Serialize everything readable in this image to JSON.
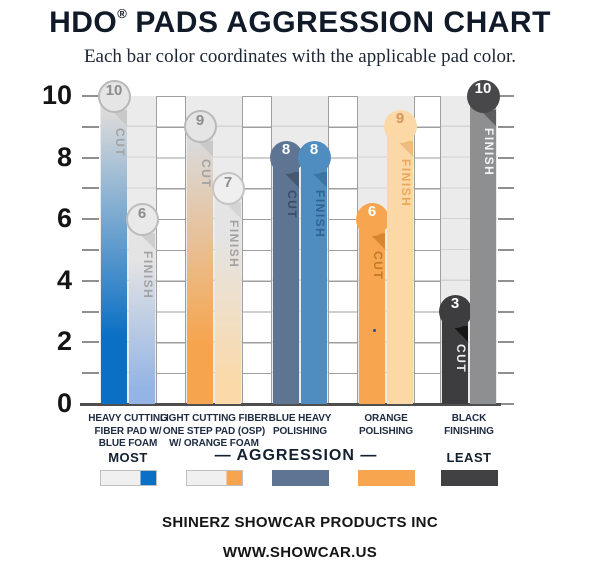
{
  "title": "HDO® PADS AGGRESSION CHART",
  "title_parts": {
    "brand": "HDO",
    "reg": "®",
    "rest": "PADS AGGRESSION CHART"
  },
  "subtitle": "Each bar color coordinates with the applicable pad color.",
  "legend": {
    "most": "MOST",
    "aggression": "— AGGRESSION —",
    "least": "LEAST"
  },
  "footer": {
    "company": "SHINERZ SHOWCAR PRODUCTS INC",
    "website": "WWW.SHOWCAR.US"
  },
  "chart_data": {
    "type": "bar",
    "title": "HDO® PADS AGGRESSION CHART",
    "ylim": [
      0,
      10
    ],
    "ytick_labels": [
      "10",
      "8",
      "6",
      "4",
      "2",
      "0"
    ],
    "minor_tick_step": 1,
    "grid": "horizontal unit lines in white ladder columns between pad groups, ticks on both sides",
    "legend_position": "bottom",
    "categories": [
      "HEAVY CUTTING FIBER PAD W/ BLUE FOAM",
      "LIGHT CUTTING FIBER ONE STEP PAD (OSP) W/ ORANGE FOAM",
      "BLUE HEAVY POLISHING",
      "ORANGE POLISHING",
      "BLACK FINISHING"
    ],
    "series": [
      {
        "name": "CUT",
        "values": [
          10,
          9,
          8,
          6,
          3
        ]
      },
      {
        "name": "FINISH",
        "values": [
          6,
          7,
          8,
          9,
          10
        ]
      }
    ],
    "pads": [
      {
        "name_lines": [
          "HEAVY CUTTING",
          "FIBER PAD W/",
          "BLUE FOAM"
        ],
        "swatch": {
          "style": "gradient",
          "base": "#f0f0f0",
          "accent": "#0b70c5"
        },
        "bars": [
          {
            "series": "CUT",
            "value": 10,
            "style": "gradient",
            "color": "#0b70c5",
            "number_color": "#8c8c8c",
            "label_color": "#a2a2a2",
            "badge_bg": "#e5e5e5",
            "badge_border": "#b9b9b9",
            "fold_color": "#c9c9c9"
          },
          {
            "series": "FINISH",
            "value": 6,
            "style": "gradient",
            "color": "#93b4e4",
            "number_color": "#8c8c8c",
            "label_color": "#a2a2a2",
            "badge_bg": "#e9e9e9",
            "badge_border": "#bcbcbc",
            "fold_color": "#cecece"
          }
        ]
      },
      {
        "name_lines": [
          "LIGHT CUTTING FIBER",
          "ONE STEP PAD (OSP)",
          "W/ ORANGE FOAM"
        ],
        "swatch": {
          "style": "gradient",
          "base": "#f0f0f0",
          "accent": "#f6a54e"
        },
        "bars": [
          {
            "series": "CUT",
            "value": 9,
            "style": "gradient",
            "color": "#f6a54e",
            "number_color": "#8c8c8c",
            "label_color": "#a2a2a2",
            "badge_bg": "#e5e5e5",
            "badge_border": "#b9b9b9",
            "fold_color": "#c9c9c9"
          },
          {
            "series": "FINISH",
            "value": 7,
            "style": "gradient",
            "color": "#fbd9a8",
            "number_color": "#8c8c8c",
            "label_color": "#a2a2a2",
            "badge_bg": "#efefef",
            "badge_border": "#c4c4c4",
            "fold_color": "#d4d4d4"
          }
        ]
      },
      {
        "name_lines": [
          "BLUE HEAVY",
          "POLISHING"
        ],
        "swatch": {
          "style": "solid",
          "accent": "#5d7493"
        },
        "bars": [
          {
            "series": "CUT",
            "value": 8,
            "style": "solid",
            "color": "#5d7493",
            "number_color": "#ffffff",
            "label_color": "#3a4e69",
            "fold_color": "#47586f"
          },
          {
            "series": "FINISH",
            "value": 8,
            "style": "solid",
            "color": "#4f8cc0",
            "number_color": "#ffffff",
            "label_color": "#2d6395",
            "fold_color": "#3b75a6"
          }
        ]
      },
      {
        "name_lines": [
          "ORANGE",
          "POLISHING"
        ],
        "swatch": {
          "style": "solid",
          "accent": "#f7a64f"
        },
        "bars": [
          {
            "series": "CUT",
            "value": 6,
            "style": "solid",
            "color": "#f7a64f",
            "number_color": "#ffffff",
            "label_color": "#c07b28",
            "fold_color": "#d8872e"
          },
          {
            "series": "FINISH",
            "value": 9,
            "style": "solid",
            "color": "#fbd8a6",
            "number_color": "#d3975a",
            "label_color": "#eca75c",
            "fold_color": "#edbd80"
          }
        ]
      },
      {
        "name_lines": [
          "BLACK",
          "FINISHING"
        ],
        "swatch": {
          "style": "solid",
          "accent": "#414144"
        },
        "bars": [
          {
            "series": "CUT",
            "value": 3,
            "style": "solid",
            "color": "#3d3d3f",
            "number_color": "#ffffff",
            "label_color": "#ededed",
            "fold_color": "#161616"
          },
          {
            "series": "FINISH",
            "value": 10,
            "style": "solid",
            "color": "#8e8f90",
            "number_color": "#ffffff",
            "label_color": "#f4f4f4",
            "badge_bg": "#48484a",
            "fold_color": "#5d5d5f"
          }
        ]
      }
    ]
  }
}
